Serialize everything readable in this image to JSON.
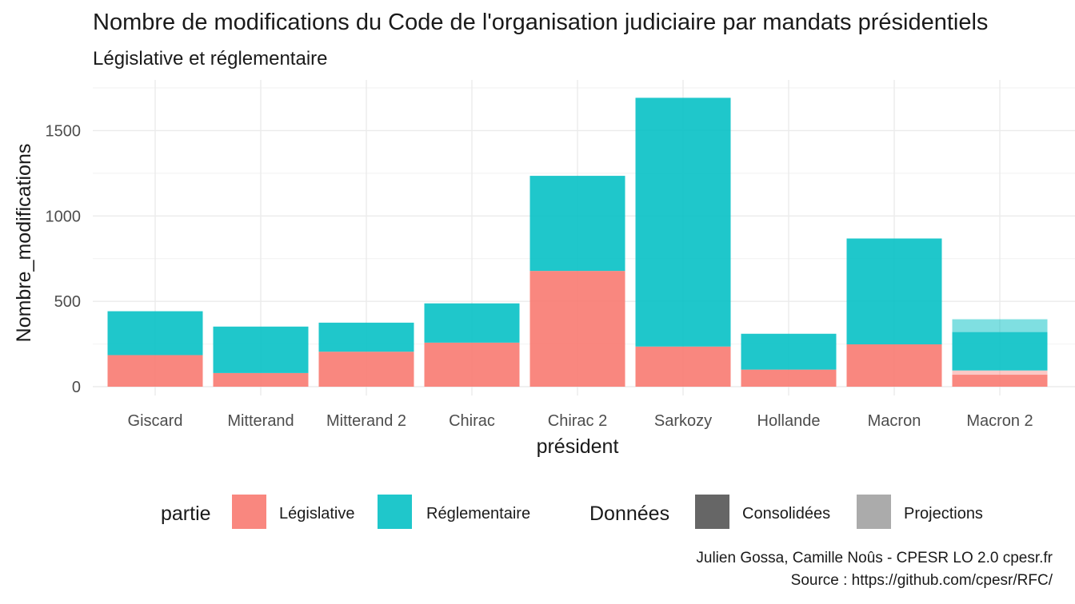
{
  "chart_data": {
    "type": "bar",
    "stacked": true,
    "title": "Nombre de modifications du Code de l'organisation judiciaire par mandats présidentiels",
    "subtitle": "Législative et réglementaire",
    "xlabel": "président",
    "ylabel": "Nombre_modifications",
    "ylim": [
      0,
      1760
    ],
    "yticks": [
      0,
      500,
      1000,
      1500
    ],
    "grid": true,
    "categories": [
      "Giscard",
      "Mitterand",
      "Mitterand 2",
      "Chirac",
      "Chirac 2",
      "Sarkozy",
      "Hollande",
      "Macron",
      "Macron 2"
    ],
    "series": [
      {
        "name": "Législative",
        "color": "#F8766D",
        "consolidees": [
          185,
          80,
          205,
          258,
          678,
          235,
          100,
          248,
          70
        ],
        "projections": [
          0,
          0,
          0,
          0,
          0,
          0,
          0,
          0,
          25
        ]
      },
      {
        "name": "Réglementaire",
        "color": "#00BFC4",
        "consolidees": [
          257,
          272,
          170,
          230,
          557,
          1457,
          210,
          620,
          225
        ],
        "projections": [
          0,
          0,
          0,
          0,
          0,
          0,
          0,
          0,
          75
        ]
      }
    ],
    "legend": {
      "position": "bottom",
      "fill_title": "partie",
      "fill_items": [
        "Législative",
        "Réglementaire"
      ],
      "alpha_title": "Données",
      "alpha_items": [
        {
          "label": "Consolidées",
          "color": "#666666"
        },
        {
          "label": "Projections",
          "color": "#ABABAB"
        }
      ]
    },
    "caption": [
      "Julien Gossa, Camille Noûs - CPESR LO 2.0 cpesr.fr",
      "Source : https://github.com/cpesr/RFC/"
    ]
  }
}
